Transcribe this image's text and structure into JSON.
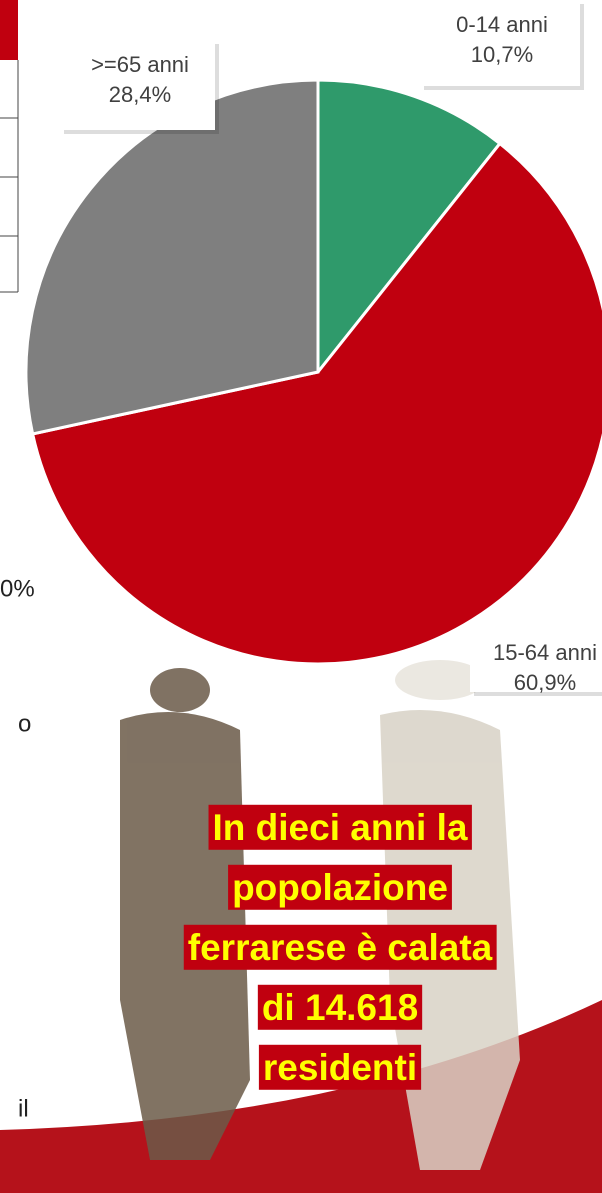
{
  "chart_data": {
    "type": "pie",
    "categories": [
      "0-14 anni",
      "15-64 anni",
      ">=65 anni"
    ],
    "values": [
      10.7,
      60.9,
      28.4
    ],
    "value_labels": [
      "10,7%",
      "60,9%",
      "28,4%"
    ],
    "colors": [
      "#2f9a6b",
      "#c0000f",
      "#7f7f7f"
    ]
  },
  "fragments": [
    "0%",
    "o",
    "il"
  ],
  "headline": [
    "In dieci anni la",
    "popolazione",
    "ferrarese è calata",
    "di 14.618",
    "residenti"
  ]
}
